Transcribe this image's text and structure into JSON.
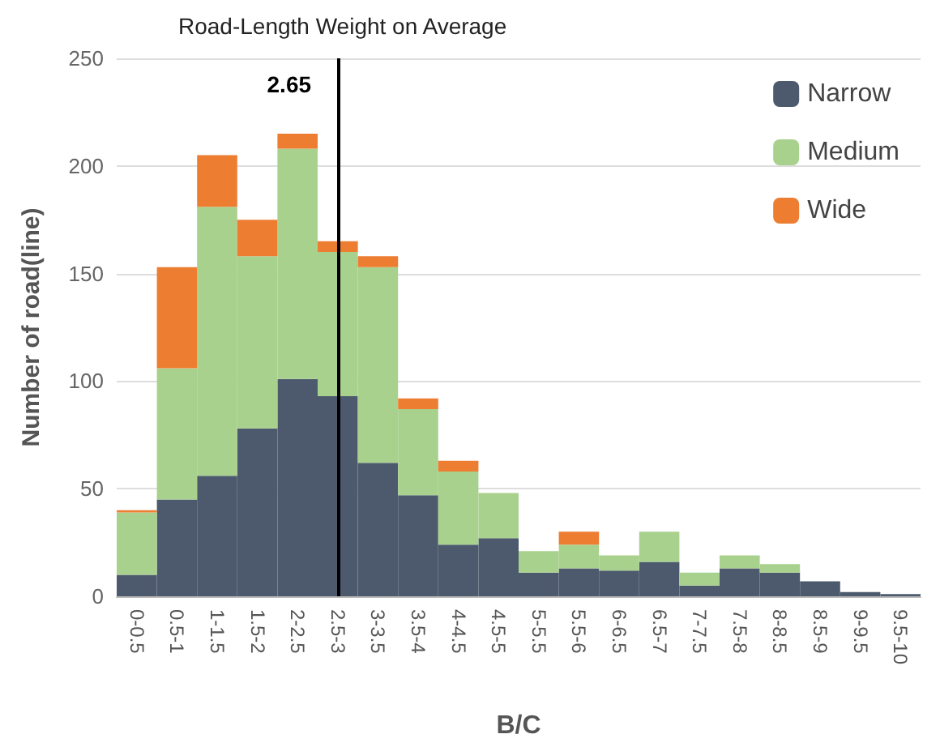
{
  "chart_data": {
    "type": "bar",
    "title": "Road-Length Weight on Average",
    "xlabel": "B/C",
    "ylabel": "Number of road(line)",
    "categories": [
      "0-0.5",
      "0.5-1",
      "1-1.5",
      "1.5-2",
      "2-2.5",
      "2.5-3",
      "3-3.5",
      "3.5-4",
      "4-4.5",
      "4.5-5",
      "5-5.5",
      "5.5-6",
      "6-6.5",
      "6.5-7",
      "7-7.5",
      "7.5-8",
      "8-8.5",
      "8.5-9",
      "9-9.5",
      "9.5-10"
    ],
    "stacked": true,
    "series": [
      {
        "name": "Narrow",
        "color": "#4d5a6e",
        "values": [
          10,
          45,
          56,
          78,
          101,
          93,
          62,
          47,
          24,
          27,
          11,
          13,
          12,
          16,
          5,
          13,
          11,
          7,
          2,
          1
        ]
      },
      {
        "name": "Medium",
        "color": "#a9d18e",
        "values": [
          29,
          61,
          125,
          80,
          107,
          67,
          91,
          40,
          34,
          21,
          10,
          11,
          7,
          14,
          6,
          6,
          4,
          0,
          0,
          0
        ]
      },
      {
        "name": "Wide",
        "color": "#ed7d31",
        "values": [
          1,
          47,
          24,
          17,
          7,
          5,
          5,
          5,
          5,
          0,
          0,
          6,
          0,
          0,
          0,
          0,
          0,
          0,
          0,
          0
        ]
      }
    ],
    "ylim": [
      0,
      250
    ],
    "yticks": [
      0,
      50,
      100,
      150,
      200,
      250
    ],
    "grid": "y",
    "legend": "top right",
    "ref_lines": [
      {
        "axis": "x",
        "value": "2.5-3",
        "label": "2.65",
        "color": "#000000"
      }
    ]
  }
}
